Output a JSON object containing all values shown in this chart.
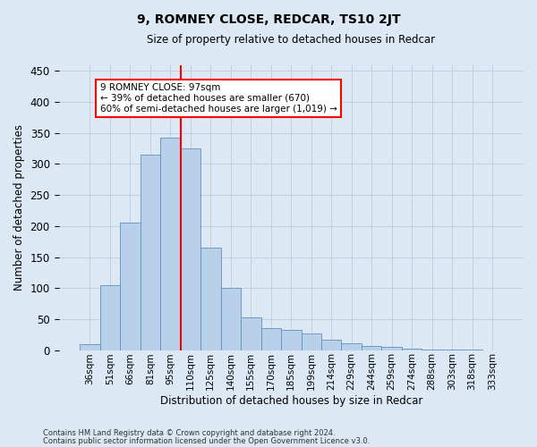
{
  "title": "9, ROMNEY CLOSE, REDCAR, TS10 2JT",
  "subtitle": "Size of property relative to detached houses in Redcar",
  "xlabel": "Distribution of detached houses by size in Redcar",
  "ylabel": "Number of detached properties",
  "categories": [
    "36sqm",
    "51sqm",
    "66sqm",
    "81sqm",
    "95sqm",
    "110sqm",
    "125sqm",
    "140sqm",
    "155sqm",
    "170sqm",
    "185sqm",
    "199sqm",
    "214sqm",
    "229sqm",
    "244sqm",
    "259sqm",
    "274sqm",
    "288sqm",
    "303sqm",
    "318sqm",
    "333sqm"
  ],
  "values": [
    10,
    105,
    205,
    315,
    342,
    325,
    165,
    100,
    52,
    35,
    32,
    27,
    17,
    11,
    6,
    5,
    2,
    1,
    1,
    1,
    0
  ],
  "bar_color": "#b8d0ea",
  "bar_edge_color": "#6090c0",
  "grid_color": "#c0d0e0",
  "background_color": "#dce8f4",
  "annotation_text": "9 ROMNEY CLOSE: 97sqm\n← 39% of detached houses are smaller (670)\n60% of semi-detached houses are larger (1,019) →",
  "annotation_box_color": "white",
  "annotation_box_edge_color": "red",
  "vline_color": "red",
  "ylim": [
    0,
    460
  ],
  "footer_line1": "Contains HM Land Registry data © Crown copyright and database right 2024.",
  "footer_line2": "Contains public sector information licensed under the Open Government Licence v3.0."
}
